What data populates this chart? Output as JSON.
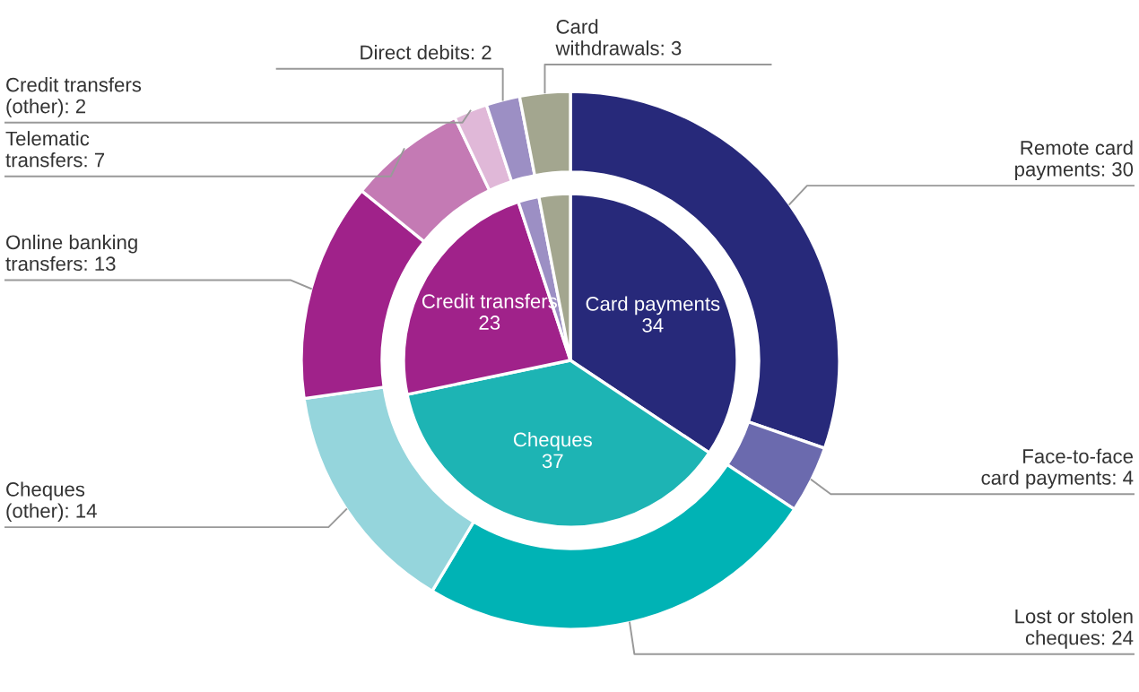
{
  "chart_data": {
    "type": "donut",
    "series": [
      {
        "values": [
          34,
          37,
          23,
          2,
          3
        ],
        "colors": [
          "#27297a",
          "#1db4b4",
          "#a0228a",
          "#9c8fc4",
          "#a3a68f"
        ],
        "value_labels": [
          "Card payments\n34",
          "Cheques\n37",
          "Credit transfers\n23",
          null,
          null
        ]
      },
      {
        "values": [
          30,
          4,
          24,
          14,
          13,
          7,
          2,
          2,
          3
        ],
        "colors": [
          "#27297a",
          "#6b6aae",
          "#00b3b5",
          "#95d5dc",
          "#a0228a",
          "#c47ab4",
          "#e0b8d8",
          "#9c8fc4",
          "#a3a68f"
        ],
        "value_labels": [
          "Remote card payments: 30",
          "Face-to-face card payments: 4",
          "Lost or stolen cheques: 24",
          "Cheques (other): 14",
          "Online banking transfers: 13",
          "Telematic transfers: 7",
          "Credit transfers (other): 2",
          "Direct debits: 2",
          "Card withdrawals: 3"
        ]
      }
    ]
  }
}
